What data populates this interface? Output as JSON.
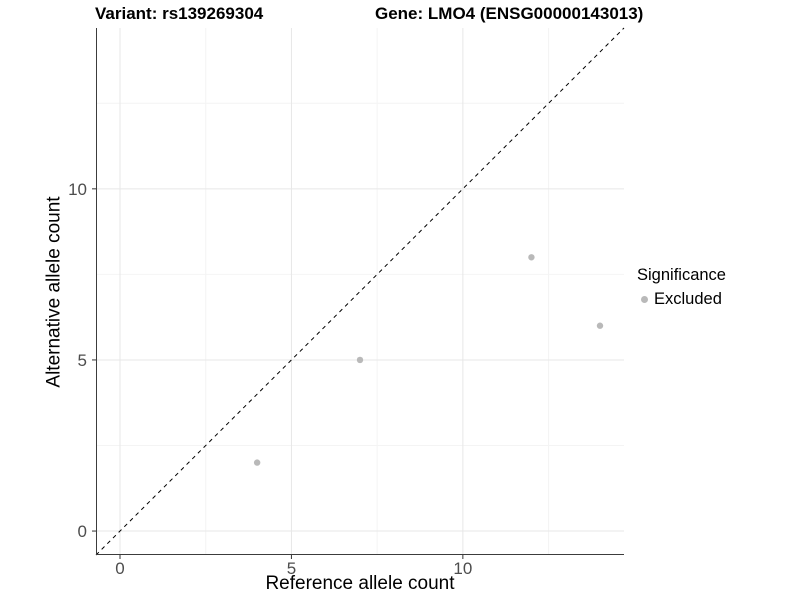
{
  "chart_data": {
    "type": "scatter",
    "titles": {
      "left": "Variant: rs139269304",
      "right": "Gene: LMO4 (ENSG00000143013)"
    },
    "xlabel": "Reference allele count",
    "ylabel": "Alternative allele count",
    "xlim": [
      -0.7,
      14.7
    ],
    "ylim": [
      -0.7,
      14.7
    ],
    "x_ticks": [
      0,
      5,
      10
    ],
    "y_ticks": [
      0,
      5,
      10
    ],
    "x_minor_ticks": [
      2.5,
      7.5,
      12.5
    ],
    "y_minor_ticks": [
      2.5,
      7.5,
      12.5
    ],
    "series": [
      {
        "name": "Excluded",
        "color": "#b9b9b9",
        "points": [
          [
            4,
            2
          ],
          [
            7,
            5
          ],
          [
            12,
            8
          ],
          [
            14,
            6
          ]
        ]
      }
    ],
    "reference_line": {
      "slope": 1,
      "intercept": 0,
      "style": "dashed",
      "color": "#000000"
    },
    "legend": {
      "position": "right",
      "title": "Significance",
      "items": [
        {
          "label": "Excluded",
          "color": "#b9b9b9"
        }
      ]
    },
    "grid": true,
    "colors": {
      "grid_major": "#e7e7e7",
      "grid_minor": "#f4f4f4",
      "axis_line": "#3c3c3c",
      "tick_mark": "#333333",
      "tick_text": "#4d4d4d",
      "point": "#b9b9b9"
    }
  }
}
